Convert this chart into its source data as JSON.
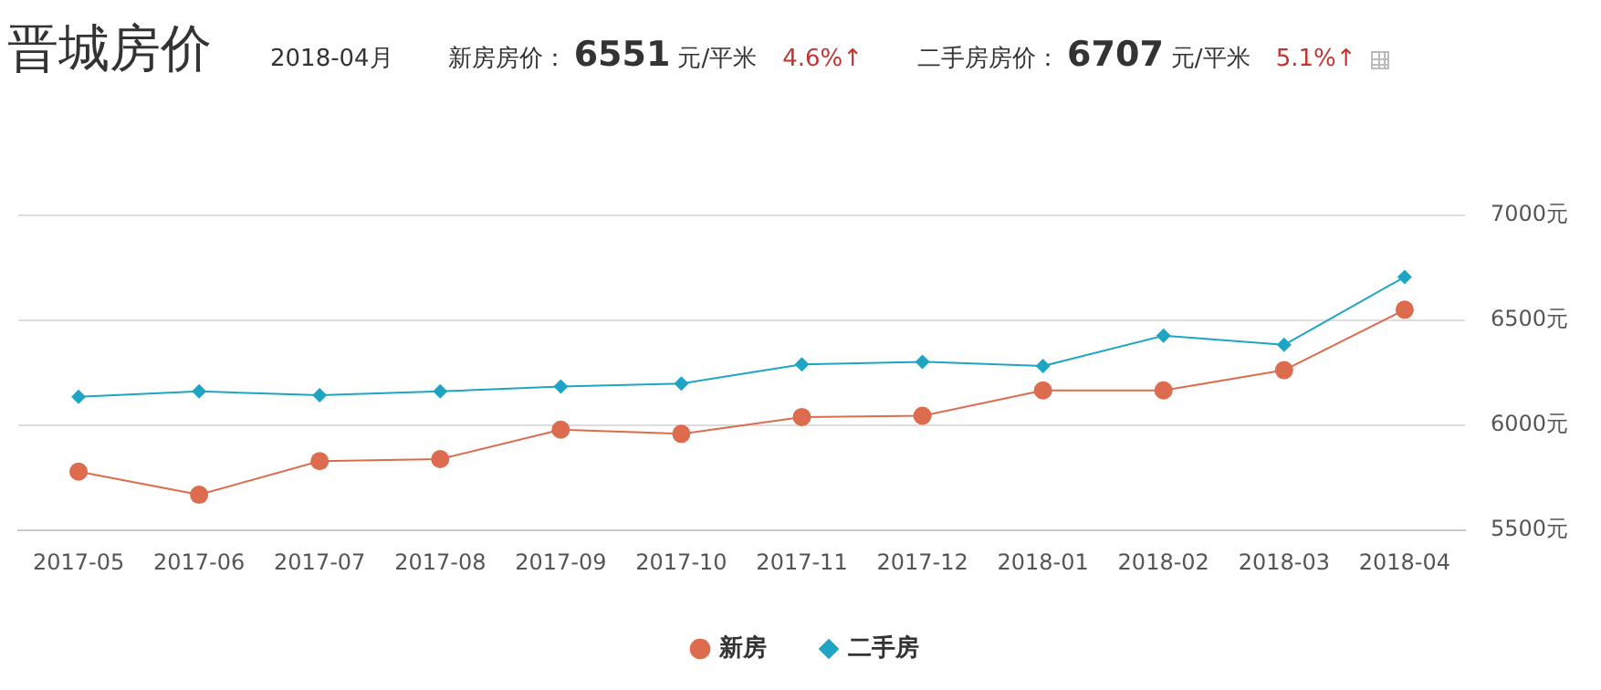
{
  "chart_data": {
    "type": "line",
    "title": "晋城房价",
    "annotations": [
      "2018-04月",
      "新房房价：",
      "6551",
      "元/平米",
      "4.6%↑",
      "二手房房价：",
      "6707",
      "元/平米",
      "5.1%↑"
    ],
    "categories": [
      "2017-05",
      "2017-06",
      "2017-07",
      "2017-08",
      "2017-09",
      "2017-10",
      "2017-11",
      "2017-12",
      "2018-01",
      "2018-02",
      "2018-03",
      "2018-04"
    ],
    "series": [
      {
        "name": "新房",
        "color": "#dd6b4d",
        "marker": "circle",
        "values": [
          5780,
          5670,
          5830,
          5840,
          5980,
          5960,
          6040,
          6046,
          6167,
          6167,
          6263,
          6551
        ]
      },
      {
        "name": "二手房",
        "color": "#1ea5c4",
        "marker": "diamond",
        "values": [
          6136,
          6162,
          6144,
          6162,
          6185,
          6199,
          6291,
          6303,
          6283,
          6427,
          6384,
          6707
        ]
      }
    ],
    "ylim": [
      5500,
      7000
    ],
    "yticks": [
      {
        "value": 5500,
        "label": "5500元"
      },
      {
        "value": 6000,
        "label": "6000元"
      },
      {
        "value": 6500,
        "label": "6500元"
      },
      {
        "value": 7000,
        "label": "7000元"
      }
    ],
    "grid": "y",
    "legend": "bottom"
  }
}
